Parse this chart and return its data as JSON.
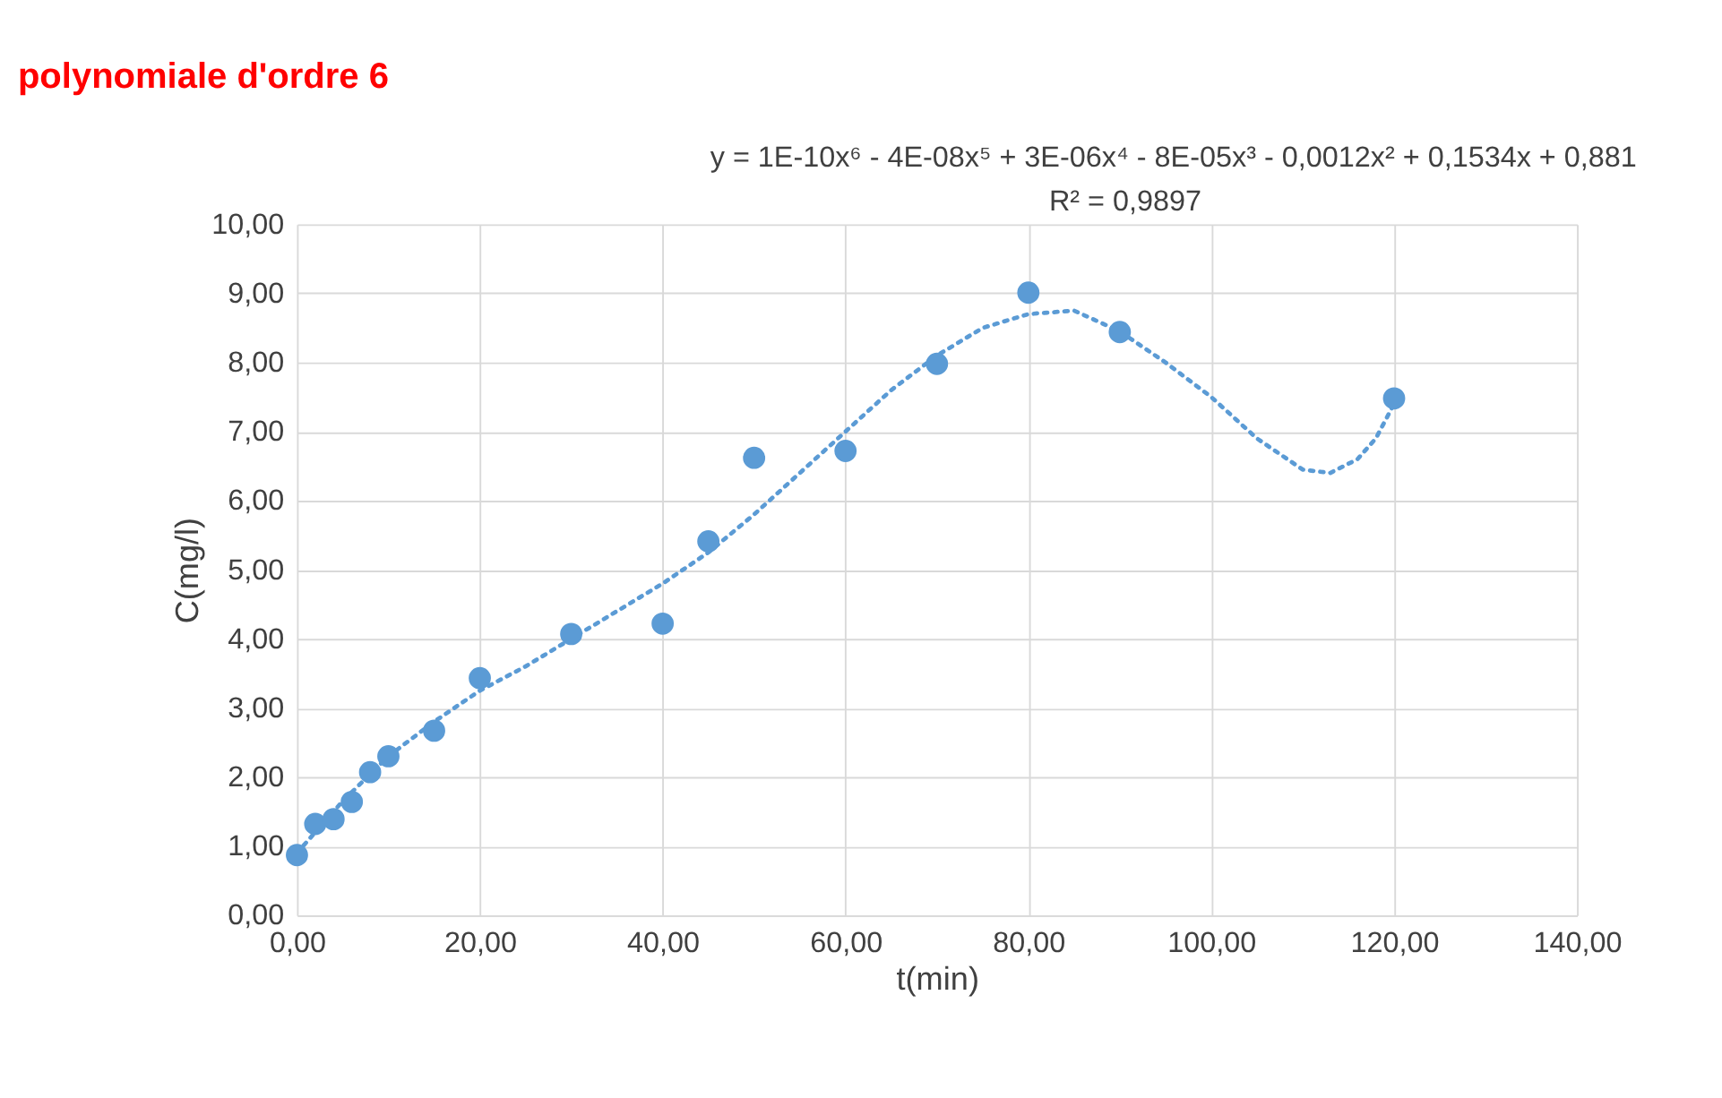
{
  "chart_data": {
    "type": "scatter",
    "title": "polynomiale d'ordre 6",
    "xlabel": "t(min)",
    "ylabel": "C(mg/l)",
    "annotations": [
      "y = 1E-10x⁶ - 4E-08x⁵ + 3E-06x⁴ - 8E-05x³ - 0,0012x² + 0,1534x + 0,881",
      "R² = 0,9897"
    ],
    "series": [
      {
        "color": "#5b9bd5",
        "marker": "circle",
        "x": [
          0,
          2,
          4,
          6,
          8,
          10,
          15,
          20,
          30,
          40,
          45,
          50,
          60,
          70,
          80,
          90,
          120
        ],
        "values": [
          0.87,
          1.32,
          1.39,
          1.64,
          2.07,
          2.3,
          2.67,
          3.43,
          4.07,
          4.22,
          5.41,
          6.62,
          6.72,
          7.98,
          9.01,
          8.44,
          7.48
        ]
      },
      {
        "type": "line",
        "color": "#5b9bd5",
        "line_style": "dotted",
        "marker": "none",
        "x": [
          0,
          5,
          10,
          15,
          20,
          25,
          30,
          35,
          40,
          45,
          50,
          55,
          60,
          65,
          70,
          75,
          80,
          85,
          90,
          95,
          100,
          105,
          110,
          113,
          116,
          118,
          120
        ],
        "values": [
          0.9,
          1.65,
          2.3,
          2.8,
          3.25,
          3.6,
          4.0,
          4.4,
          4.8,
          5.25,
          5.8,
          6.4,
          7.0,
          7.6,
          8.1,
          8.5,
          8.7,
          8.75,
          8.45,
          8.0,
          7.5,
          6.9,
          6.45,
          6.4,
          6.6,
          6.9,
          7.4
        ]
      }
    ],
    "xlim": [
      0,
      140
    ],
    "ylim": [
      0,
      10
    ],
    "xticks": [
      {
        "value": 0,
        "label": "0,00"
      },
      {
        "value": 20,
        "label": "20,00"
      },
      {
        "value": 40,
        "label": "40,00"
      },
      {
        "value": 60,
        "label": "60,00"
      },
      {
        "value": 80,
        "label": "80,00"
      },
      {
        "value": 100,
        "label": "100,00"
      },
      {
        "value": 120,
        "label": "120,00"
      },
      {
        "value": 140,
        "label": "140,00"
      }
    ],
    "yticks": [
      {
        "value": 0,
        "label": "0,00"
      },
      {
        "value": 1,
        "label": "1,00"
      },
      {
        "value": 2,
        "label": "2,00"
      },
      {
        "value": 3,
        "label": "3,00"
      },
      {
        "value": 4,
        "label": "4,00"
      },
      {
        "value": 5,
        "label": "5,00"
      },
      {
        "value": 6,
        "label": "6,00"
      },
      {
        "value": 7,
        "label": "7,00"
      },
      {
        "value": 8,
        "label": "8,00"
      },
      {
        "value": 9,
        "label": "9,00"
      },
      {
        "value": 10,
        "label": "10,00"
      }
    ],
    "grid": true
  }
}
